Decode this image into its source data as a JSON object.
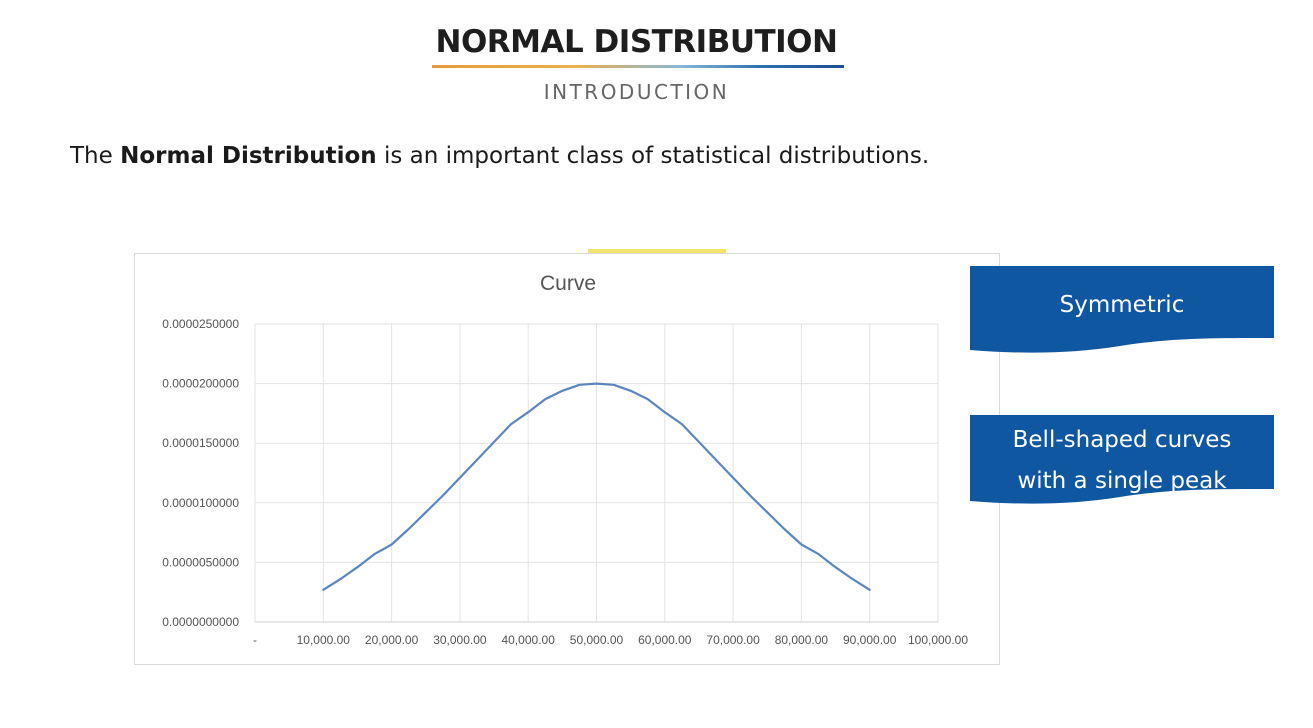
{
  "header": {
    "title": "NORMAL DISTRIBUTION",
    "subtitle": "INTRODUCTION"
  },
  "intro": {
    "prefix": "The ",
    "bold": "Normal Distribution",
    "suffix": " is an important class of statistical distributions."
  },
  "callouts": [
    {
      "text": "Symmetric"
    },
    {
      "text_line1": "Bell-shaped curves",
      "text_line2": "with a single peak"
    }
  ],
  "colors": {
    "callout_blue": "#0f57a1",
    "curve_blue": "#5b86c1",
    "grid": "#e3e3e3"
  },
  "chart_data": {
    "type": "line",
    "title": "Curve",
    "xlabel": "",
    "ylabel": "",
    "x_tick_labels": [
      "-",
      "10,000.00",
      "20,000.00",
      "30,000.00",
      "40,000.00",
      "50,000.00",
      "60,000.00",
      "70,000.00",
      "80,000.00",
      "90,000.00",
      "100,000.00"
    ],
    "x_ticks": [
      0,
      10000,
      20000,
      30000,
      40000,
      50000,
      60000,
      70000,
      80000,
      90000,
      100000
    ],
    "y_tick_labels": [
      "0.0000000000",
      "0.0000050000",
      "0.0000100000",
      "0.0000150000",
      "0.0000200000",
      "0.0000250000"
    ],
    "y_ticks": [
      0,
      5e-06,
      1e-05,
      1.5e-05,
      2e-05,
      2.5e-05
    ],
    "xlim": [
      0,
      100000
    ],
    "ylim": [
      0,
      2.5e-05
    ],
    "grid": true,
    "series": [
      {
        "x": [
          10000,
          12500,
          15000,
          17500,
          20000,
          22500,
          25000,
          27500,
          30000,
          32500,
          35000,
          37500,
          40000,
          42500,
          45000,
          47500,
          50000,
          52500,
          55000,
          57500,
          60000,
          62500,
          65000,
          67500,
          70000,
          72500,
          75000,
          77500,
          80000,
          82500,
          85000,
          87500,
          90000
        ],
        "y": [
          2.7e-06,
          3.6e-06,
          4.6e-06,
          5.7e-06,
          6.5e-06,
          7.8e-06,
          9.2e-06,
          1.06e-05,
          1.21e-05,
          1.36e-05,
          1.51e-05,
          1.66e-05,
          1.76e-05,
          1.87e-05,
          1.94e-05,
          1.99e-05,
          2e-05,
          1.99e-05,
          1.94e-05,
          1.87e-05,
          1.76e-05,
          1.66e-05,
          1.51e-05,
          1.36e-05,
          1.21e-05,
          1.06e-05,
          9.2e-06,
          7.8e-06,
          6.5e-06,
          5.7e-06,
          4.6e-06,
          3.6e-06,
          2.7e-06
        ]
      }
    ]
  }
}
